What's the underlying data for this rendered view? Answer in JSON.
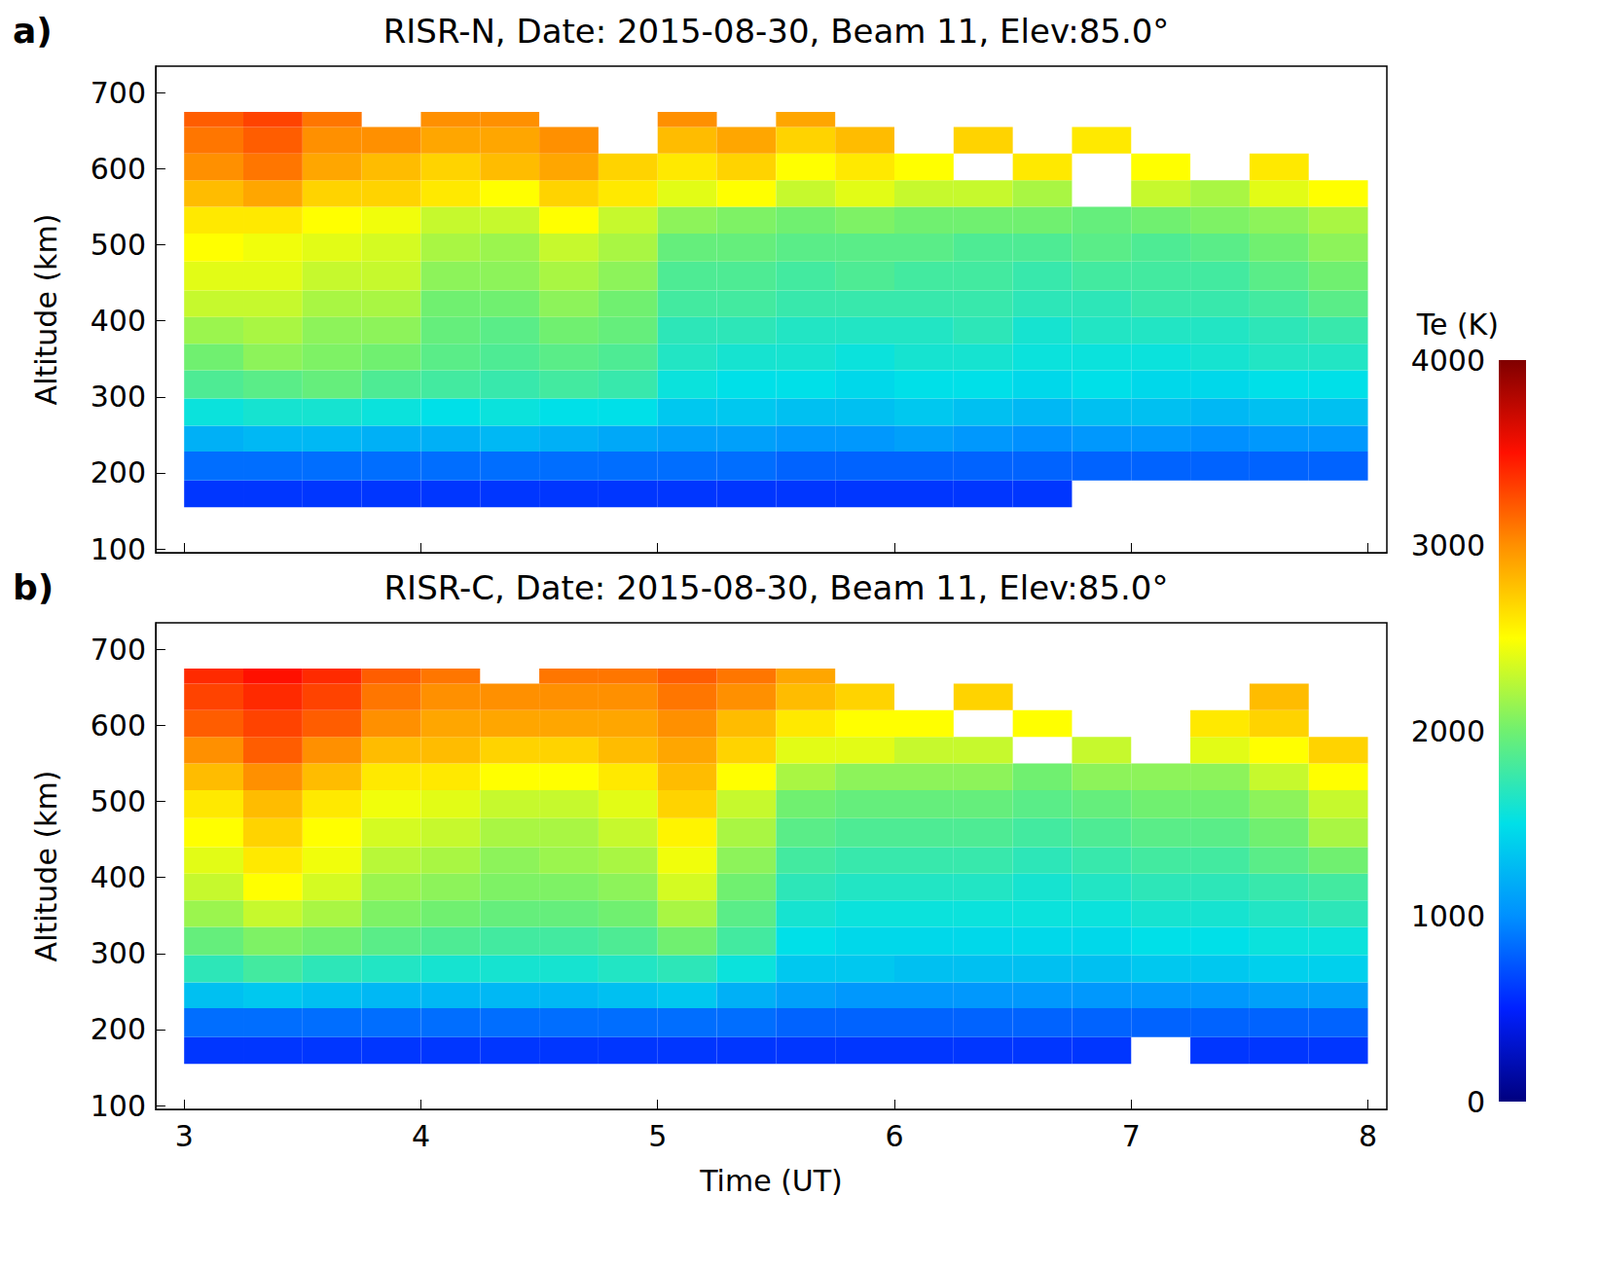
{
  "chart_data": [
    {
      "type": "heatmap",
      "panel_label": "a)",
      "title": "RISR-N, Date: 2015-08-30, Beam 11, Elev:85.0°",
      "ylabel": "Altitude (km)",
      "tick_labels": "y",
      "grid": false,
      "xlim": [
        2.88,
        8.08
      ],
      "xticks": [
        3,
        4,
        5,
        6,
        7,
        8
      ],
      "ylim": [
        95,
        735
      ],
      "yticks": [
        100,
        200,
        300,
        400,
        500,
        600,
        700
      ],
      "x_edges": [
        3.0,
        3.25,
        3.5,
        3.75,
        4.0,
        4.25,
        4.5,
        4.75,
        5.0,
        5.25,
        5.5,
        5.75,
        6.0,
        6.25,
        6.5,
        6.75,
        7.0,
        7.25,
        7.5,
        7.75,
        8.0
      ],
      "y_edges": [
        155,
        190,
        228,
        262,
        298,
        335,
        370,
        405,
        440,
        478,
        515,
        550,
        585,
        620,
        655,
        675
      ],
      "cells": [
        [
          600,
          600,
          600,
          600,
          600,
          600,
          600,
          600,
          600,
          600,
          600,
          600,
          600,
          600,
          600,
          null,
          null,
          null,
          null,
          null
        ],
        [
          850,
          850,
          850,
          850,
          850,
          850,
          850,
          850,
          850,
          850,
          800,
          800,
          800,
          800,
          800,
          800,
          800,
          800,
          800,
          800
        ],
        [
          1200,
          1250,
          1250,
          1200,
          1200,
          1250,
          1200,
          1150,
          1100,
          1100,
          1050,
          1050,
          1100,
          1050,
          1000,
          1050,
          1050,
          1000,
          1050,
          1050
        ],
        [
          1550,
          1600,
          1600,
          1550,
          1500,
          1550,
          1500,
          1500,
          1350,
          1350,
          1300,
          1300,
          1350,
          1300,
          1250,
          1300,
          1300,
          1250,
          1300,
          1300
        ],
        [
          1850,
          1900,
          1950,
          1850,
          1800,
          1750,
          1800,
          1750,
          1550,
          1500,
          1500,
          1450,
          1500,
          1500,
          1450,
          1500,
          1450,
          1450,
          1500,
          1500
        ],
        [
          2000,
          2100,
          2050,
          2000,
          1900,
          1850,
          1900,
          1850,
          1650,
          1600,
          1600,
          1550,
          1600,
          1600,
          1550,
          1550,
          1550,
          1600,
          1650,
          1650
        ],
        [
          2150,
          2200,
          2100,
          2100,
          1950,
          1900,
          2000,
          1950,
          1700,
          1700,
          1650,
          1650,
          1650,
          1700,
          1600,
          1650,
          1650,
          1650,
          1700,
          1750
        ],
        [
          2300,
          2300,
          2200,
          2200,
          2000,
          2000,
          2100,
          2000,
          1800,
          1800,
          1750,
          1750,
          1750,
          1750,
          1700,
          1700,
          1750,
          1750,
          1800,
          1900
        ],
        [
          2400,
          2400,
          2300,
          2300,
          2100,
          2100,
          2200,
          2100,
          1850,
          1850,
          1800,
          1850,
          1800,
          1800,
          1750,
          1800,
          1800,
          1800,
          1900,
          2000
        ],
        [
          2500,
          2450,
          2400,
          2350,
          2200,
          2150,
          2300,
          2200,
          1950,
          1950,
          1900,
          1900,
          1900,
          1850,
          1850,
          1900,
          1850,
          1900,
          2000,
          2100
        ],
        [
          2600,
          2600,
          2500,
          2450,
          2300,
          2300,
          2500,
          2300,
          2100,
          2050,
          2000,
          2050,
          2000,
          2000,
          2000,
          1950,
          2000,
          2050,
          2100,
          2200
        ],
        [
          2800,
          2900,
          2700,
          2700,
          2600,
          2500,
          2700,
          2600,
          2400,
          2500,
          2300,
          2400,
          2300,
          2300,
          2200,
          null,
          2300,
          2200,
          2400,
          2500
        ],
        [
          3000,
          3100,
          2900,
          2800,
          2700,
          2800,
          2900,
          2700,
          2600,
          2700,
          2500,
          2600,
          2500,
          null,
          2600,
          null,
          2500,
          null,
          2600,
          null
        ],
        [
          3100,
          3200,
          3000,
          3000,
          2900,
          2900,
          3000,
          null,
          2800,
          2900,
          2700,
          2800,
          null,
          2700,
          null,
          2600,
          null,
          null,
          null,
          null
        ],
        [
          3200,
          3300,
          3100,
          null,
          3000,
          3000,
          null,
          null,
          3000,
          null,
          2900,
          null,
          null,
          null,
          null,
          null,
          null,
          null,
          null,
          null
        ]
      ]
    },
    {
      "type": "heatmap",
      "panel_label": "b)",
      "title": "RISR-C, Date: 2015-08-30, Beam 11, Elev:85.0°",
      "xlabel": "Time (UT)",
      "ylabel": "Altitude (km)",
      "grid": false,
      "xlim": [
        2.88,
        8.08
      ],
      "xticks": [
        3,
        4,
        5,
        6,
        7,
        8
      ],
      "ylim": [
        95,
        735
      ],
      "yticks": [
        100,
        200,
        300,
        400,
        500,
        600,
        700
      ],
      "x_edges": [
        3.0,
        3.25,
        3.5,
        3.75,
        4.0,
        4.25,
        4.5,
        4.75,
        5.0,
        5.25,
        5.5,
        5.75,
        6.0,
        6.25,
        6.5,
        6.75,
        7.0,
        7.25,
        7.5,
        7.75,
        8.0
      ],
      "y_edges": [
        155,
        190,
        228,
        262,
        298,
        335,
        370,
        405,
        440,
        478,
        515,
        550,
        585,
        620,
        655,
        675
      ],
      "cells": [
        [
          600,
          600,
          600,
          600,
          600,
          600,
          600,
          600,
          600,
          600,
          600,
          600,
          600,
          600,
          600,
          600,
          null,
          600,
          600,
          600
        ],
        [
          850,
          850,
          850,
          850,
          850,
          850,
          850,
          850,
          850,
          850,
          800,
          800,
          800,
          800,
          800,
          800,
          800,
          800,
          800,
          800
        ],
        [
          1300,
          1350,
          1300,
          1250,
          1250,
          1250,
          1250,
          1300,
          1350,
          1200,
          1100,
          1050,
          1050,
          1050,
          1050,
          1050,
          1050,
          1050,
          1100,
          1100
        ],
        [
          1700,
          1800,
          1700,
          1650,
          1600,
          1600,
          1600,
          1650,
          1700,
          1550,
          1350,
          1350,
          1300,
          1300,
          1300,
          1300,
          1350,
          1350,
          1400,
          1400
        ],
        [
          1950,
          2050,
          2000,
          1900,
          1850,
          1800,
          1800,
          1850,
          2000,
          1800,
          1500,
          1450,
          1450,
          1450,
          1450,
          1450,
          1500,
          1500,
          1550,
          1550
        ],
        [
          2150,
          2300,
          2200,
          2050,
          2000,
          1950,
          1950,
          2000,
          2200,
          1900,
          1600,
          1550,
          1550,
          1550,
          1550,
          1550,
          1600,
          1600,
          1650,
          1700
        ],
        [
          2300,
          2500,
          2350,
          2150,
          2100,
          2050,
          2050,
          2100,
          2350,
          2000,
          1700,
          1650,
          1650,
          1650,
          1600,
          1650,
          1700,
          1700,
          1750,
          1800
        ],
        [
          2400,
          2600,
          2450,
          2250,
          2200,
          2100,
          2150,
          2200,
          2450,
          2100,
          1800,
          1750,
          1750,
          1750,
          1700,
          1750,
          1800,
          1800,
          1900,
          2000
        ],
        [
          2500,
          2700,
          2500,
          2350,
          2300,
          2200,
          2200,
          2300,
          2550,
          2200,
          1900,
          1850,
          1850,
          1850,
          1800,
          1850,
          1900,
          1900,
          2000,
          2200
        ],
        [
          2600,
          2800,
          2600,
          2450,
          2400,
          2300,
          2300,
          2400,
          2700,
          2300,
          2000,
          1950,
          1950,
          1950,
          1900,
          1950,
          2000,
          2000,
          2100,
          2300
        ],
        [
          2800,
          3000,
          2800,
          2600,
          2600,
          2500,
          2500,
          2600,
          2800,
          2500,
          2200,
          2100,
          2100,
          2100,
          2000,
          2100,
          2100,
          2100,
          2300,
          2500
        ],
        [
          3000,
          3200,
          3000,
          2800,
          2800,
          2700,
          2700,
          2800,
          2900,
          2700,
          2400,
          2400,
          2300,
          2300,
          null,
          2300,
          null,
          2400,
          2500,
          2700
        ],
        [
          3200,
          3300,
          3200,
          3000,
          2900,
          2900,
          2900,
          2900,
          3000,
          2800,
          2600,
          2500,
          2500,
          null,
          2500,
          null,
          null,
          2600,
          2700,
          null
        ],
        [
          3300,
          3400,
          3300,
          3100,
          3000,
          3000,
          3000,
          3000,
          3100,
          3000,
          2800,
          2700,
          null,
          2700,
          null,
          null,
          null,
          null,
          2800,
          null
        ],
        [
          3400,
          3500,
          3400,
          3200,
          3100,
          null,
          3100,
          3100,
          3200,
          3100,
          2900,
          null,
          null,
          null,
          null,
          null,
          null,
          null,
          null,
          null
        ]
      ],
      "colorbar": {
        "label": "Te (K)",
        "range": [
          0,
          4000
        ],
        "ticks": [
          0,
          1000,
          2000,
          3000,
          4000
        ]
      }
    }
  ]
}
